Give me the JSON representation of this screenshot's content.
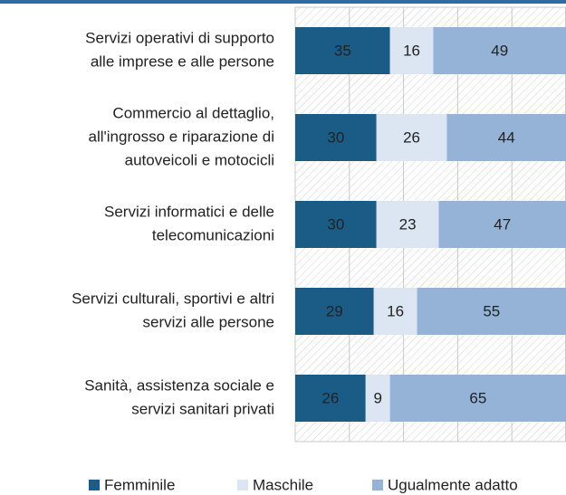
{
  "chart_data": {
    "type": "stacked-bar-horizontal",
    "categories": [
      [
        "Servizi operativi di supporto",
        "alle imprese e alle persone"
      ],
      [
        "Commercio al dettaglio,",
        "all'ingrosso e riparazione di",
        "autoveicoli e motocicli"
      ],
      [
        "Servizi informatici e delle",
        "telecomunicazioni"
      ],
      [
        "Servizi culturali, sportivi e altri",
        "servizi alle persone"
      ],
      [
        "Sanità, assistenza sociale e",
        "servizi sanitari privati"
      ]
    ],
    "series": [
      {
        "name": "Femminile",
        "color": "#1b5c86",
        "label_color": "#ffffff",
        "values": [
          35,
          30,
          30,
          29,
          26
        ]
      },
      {
        "name": "Maschile",
        "color": "#dce6f2",
        "label_color": "#222222",
        "values": [
          16,
          26,
          23,
          16,
          9
        ]
      },
      {
        "name": "Ugualmente adatto",
        "color": "#95b3d7",
        "label_color": "#222222",
        "values": [
          49,
          44,
          47,
          55,
          65
        ]
      }
    ],
    "xlim": [
      0,
      100
    ],
    "xticks": [
      0,
      20,
      40,
      60,
      80,
      100
    ],
    "grid": true,
    "legend": "bottom"
  }
}
